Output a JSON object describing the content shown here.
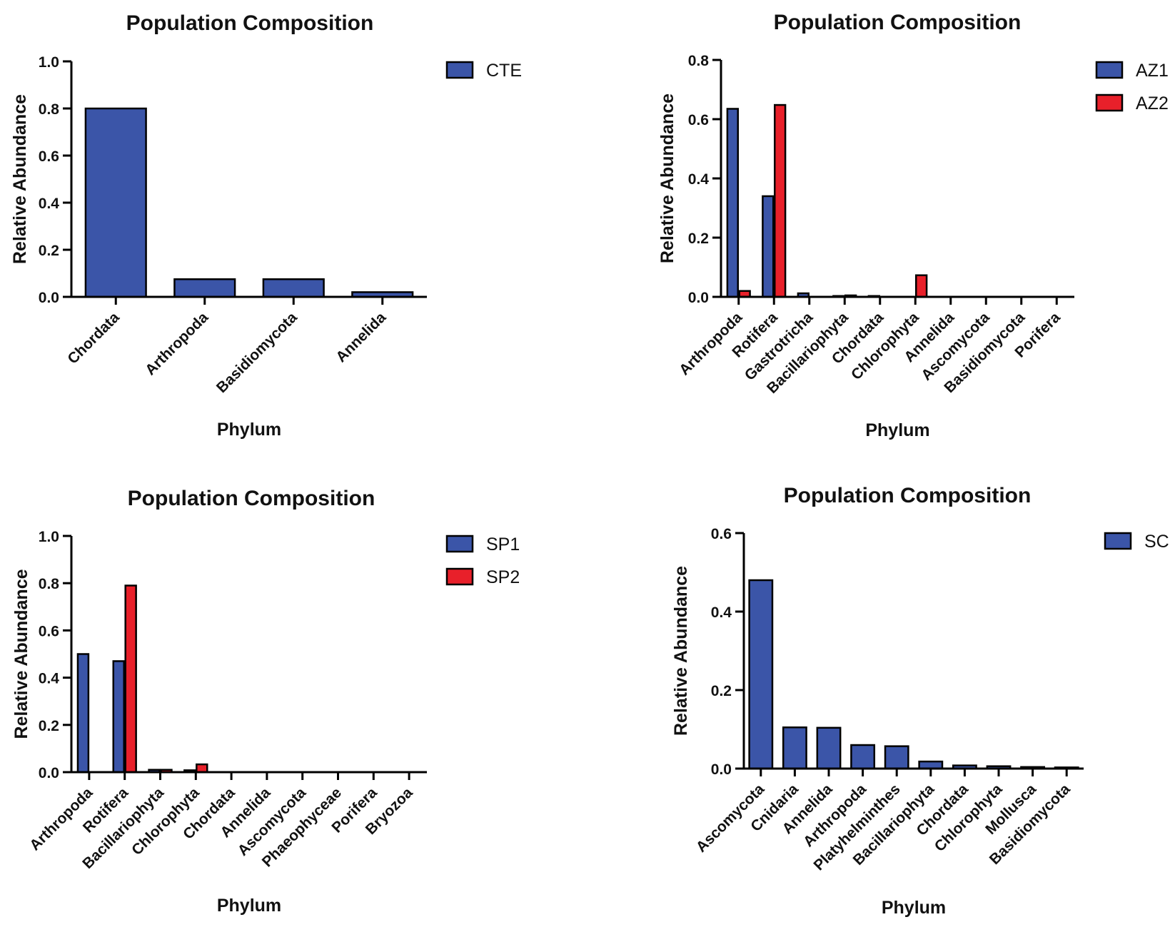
{
  "colors": {
    "series_blue": "#3b55a8",
    "series_red": "#e8202a",
    "axis": "#000000",
    "text": "#111111",
    "background": "#ffffff"
  },
  "chart_data": [
    {
      "type": "bar",
      "title": "Population Composition",
      "xlabel": "Phylum",
      "ylabel": "Relative Abundance",
      "ylim": [
        0,
        1.0
      ],
      "yticks": [
        "0.0",
        "0.2",
        "0.4",
        "0.6",
        "0.8",
        "1.0"
      ],
      "categories": [
        "Chordata",
        "Arthropoda",
        "Basidiomycota",
        "Annelida"
      ],
      "series": [
        {
          "name": "CTE",
          "color": "#3b55a8",
          "values": [
            0.8,
            0.075,
            0.075,
            0.02
          ]
        }
      ],
      "legend": "top-right",
      "grid": false
    },
    {
      "type": "bar",
      "title": "Population Composition",
      "xlabel": "Phylum",
      "ylabel": "Relative Abundance",
      "ylim": [
        0,
        0.8
      ],
      "yticks": [
        "0.0",
        "0.2",
        "0.4",
        "0.6",
        "0.8"
      ],
      "categories": [
        "Arthropoda",
        "Rotifera",
        "Gastrotricha",
        "Bacillariophyta",
        "Chordata",
        "Chlorophyta",
        "Annelida",
        "Ascomycota",
        "Basidiomycota",
        "Porifera"
      ],
      "series": [
        {
          "name": "AZ1",
          "color": "#3b55a8",
          "values": [
            0.635,
            0.34,
            0.012,
            0.003,
            0.003,
            0.0,
            0.0,
            0.0,
            0.0,
            0.0
          ]
        },
        {
          "name": "AZ2",
          "color": "#e8202a",
          "values": [
            0.02,
            0.648,
            0.0,
            0.005,
            0.0,
            0.073,
            0.0,
            0.0,
            0.0,
            0.0
          ]
        }
      ],
      "legend": "top-right",
      "grid": false
    },
    {
      "type": "bar",
      "title": "Population Composition",
      "xlabel": "Phylum",
      "ylabel": "Relative Abundance",
      "ylim": [
        0,
        1.0
      ],
      "yticks": [
        "0.0",
        "0.2",
        "0.4",
        "0.6",
        "0.8",
        "1.0"
      ],
      "categories": [
        "Arthropoda",
        "Rotifera",
        "Bacillariophyta",
        "Chlorophyta",
        "Chordata",
        "Annelida",
        "Ascomycota",
        "Phaeophyceae",
        "Porifera",
        "Bryozoa"
      ],
      "series": [
        {
          "name": "SP1",
          "color": "#3b55a8",
          "values": [
            0.5,
            0.47,
            0.01,
            0.008,
            0.0,
            0.0,
            0.0,
            0.0,
            0.0,
            0.0
          ]
        },
        {
          "name": "SP2",
          "color": "#e8202a",
          "values": [
            0.0,
            0.79,
            0.01,
            0.033,
            0.0,
            0.0,
            0.0,
            0.0,
            0.0,
            0.0
          ]
        }
      ],
      "legend": "top-right",
      "grid": false
    },
    {
      "type": "bar",
      "title": "Population Composition",
      "xlabel": "Phylum",
      "ylabel": "Relative Abundance",
      "ylim": [
        0,
        0.6
      ],
      "yticks": [
        "0.0",
        "0.2",
        "0.4",
        "0.6"
      ],
      "categories": [
        "Ascomycota",
        "Cnidaria",
        "Annelida",
        "Arthropoda",
        "Platyhelminthes",
        "Bacillariophyta",
        "Chordata",
        "Chlorophyta",
        "Mollusca",
        "Basidiomycota"
      ],
      "series": [
        {
          "name": "SC",
          "color": "#3b55a8",
          "values": [
            0.48,
            0.105,
            0.104,
            0.06,
            0.057,
            0.018,
            0.008,
            0.006,
            0.004,
            0.003
          ]
        }
      ],
      "legend": "top-right",
      "grid": false
    }
  ]
}
